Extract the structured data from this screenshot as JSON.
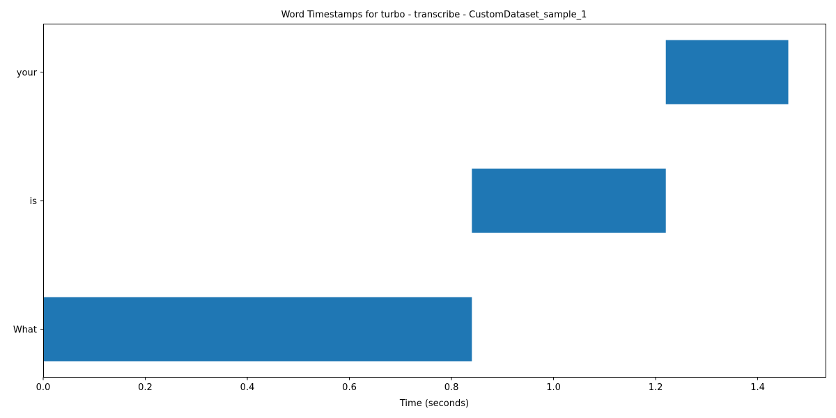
{
  "chart_data": {
    "type": "bar",
    "orientation": "horizontal",
    "title": "Word Timestamps for turbo - transcribe - CustomDataset_sample_1",
    "xlabel": "Time (seconds)",
    "ylabel": "",
    "xlim": [
      0.0,
      1.533
    ],
    "x_ticks": [
      0.0,
      0.2,
      0.4,
      0.6,
      0.8,
      1.0,
      1.2,
      1.4
    ],
    "x_tick_labels": [
      "0.0",
      "0.2",
      "0.4",
      "0.6",
      "0.8",
      "1.0",
      "1.2",
      "1.4"
    ],
    "categories": [
      "What",
      "is",
      "your"
    ],
    "segments": [
      {
        "word": "What",
        "start": 0.0,
        "end": 0.84
      },
      {
        "word": "is",
        "start": 0.84,
        "end": 1.22
      },
      {
        "word": "your",
        "start": 1.22,
        "end": 1.46
      }
    ],
    "grid": false,
    "legend": "none",
    "colors": {
      "bar": "#1f77b4",
      "axis": "#000000",
      "background": "#ffffff"
    }
  }
}
